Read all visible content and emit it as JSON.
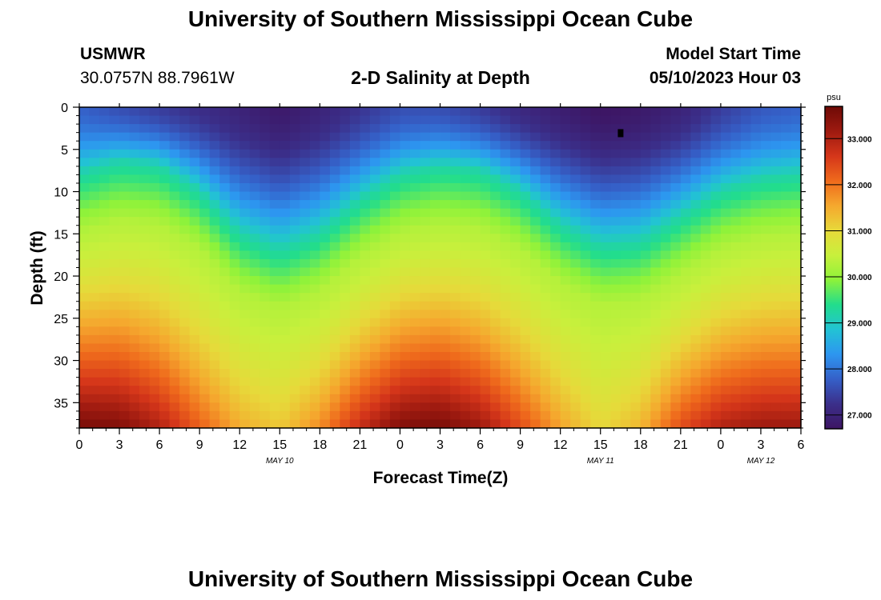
{
  "page_title": "University of Southern Mississippi Ocean Cube",
  "footer_title": "University of Southern Mississippi Ocean Cube",
  "station": {
    "name": "USMWR",
    "coords": "30.0757N  88.7961W"
  },
  "model_start": {
    "label": "Model Start Time",
    "value": "05/10/2023 Hour 03"
  },
  "colorbar_scale": [
    "#3d1563",
    "#3b2f8a",
    "#3560c8",
    "#2d96f0",
    "#22c3d4",
    "#22dd8c",
    "#8ef23a",
    "#c8f03c",
    "#e7d93a",
    "#f5a82e",
    "#ef6a1c",
    "#d5361a",
    "#9e1a10",
    "#6e0a06"
  ],
  "chart_data": {
    "type": "heatmap",
    "title": "2-D Salinity at Depth",
    "xlabel": "Forecast Time(Z)",
    "ylabel": "Depth (ft)",
    "x_ticks": [
      "0",
      "3",
      "6",
      "9",
      "12",
      "15",
      "18",
      "21",
      "0",
      "3",
      "6",
      "9",
      "12",
      "15",
      "18",
      "21",
      "0",
      "3",
      "6"
    ],
    "date_labels": [
      "MAY 10",
      "MAY 11",
      "MAY 12"
    ],
    "xlim_hours": [
      0,
      54
    ],
    "ylim": [
      0,
      38
    ],
    "y_ticks": [
      0,
      5,
      10,
      15,
      20,
      25,
      30,
      35
    ],
    "units": "psu",
    "colorbar_ticks": [
      "27.000",
      "28.000",
      "29.000",
      "30.000",
      "31.000",
      "32.000",
      "33.000"
    ],
    "color_range": [
      26.7,
      33.7
    ],
    "surface_low_salinity_psu": [
      {
        "hour": 0,
        "value": 27.8
      },
      {
        "hour": 3,
        "value": 27.6
      },
      {
        "hour": 6,
        "value": 27.4
      },
      {
        "hour": 9,
        "value": 27.2
      },
      {
        "hour": 12,
        "value": 27.0
      },
      {
        "hour": 15,
        "value": 26.8
      },
      {
        "hour": 18,
        "value": 27.0
      },
      {
        "hour": 21,
        "value": 27.3
      },
      {
        "hour": 24,
        "value": 27.6
      },
      {
        "hour": 27,
        "value": 27.6
      },
      {
        "hour": 30,
        "value": 27.4
      },
      {
        "hour": 33,
        "value": 27.1
      },
      {
        "hour": 36,
        "value": 26.9
      },
      {
        "hour": 39,
        "value": 26.7
      },
      {
        "hour": 42,
        "value": 26.8
      },
      {
        "hour": 45,
        "value": 27.0
      },
      {
        "hour": 48,
        "value": 27.4
      },
      {
        "hour": 51,
        "value": 27.7
      },
      {
        "hour": 54,
        "value": 27.8
      }
    ],
    "halocline_depth_ft": [
      {
        "hour": 0,
        "value": 8
      },
      {
        "hour": 3,
        "value": 6.5
      },
      {
        "hour": 6,
        "value": 7
      },
      {
        "hour": 9,
        "value": 10
      },
      {
        "hour": 12,
        "value": 15
      },
      {
        "hour": 15,
        "value": 17
      },
      {
        "hour": 18,
        "value": 15
      },
      {
        "hour": 21,
        "value": 11
      },
      {
        "hour": 24,
        "value": 8
      },
      {
        "hour": 27,
        "value": 7
      },
      {
        "hour": 30,
        "value": 7.5
      },
      {
        "hour": 33,
        "value": 10
      },
      {
        "hour": 36,
        "value": 14
      },
      {
        "hour": 39,
        "value": 16.5
      },
      {
        "hour": 42,
        "value": 16
      },
      {
        "hour": 45,
        "value": 13
      },
      {
        "hour": 48,
        "value": 10
      },
      {
        "hour": 51,
        "value": 8.5
      },
      {
        "hour": 54,
        "value": 8
      }
    ],
    "bottom_salinity_psu": [
      {
        "hour": 0,
        "value": 33.6
      },
      {
        "hour": 3,
        "value": 33.5
      },
      {
        "hour": 6,
        "value": 33.0
      },
      {
        "hour": 9,
        "value": 32.2
      },
      {
        "hour": 12,
        "value": 31.5
      },
      {
        "hour": 15,
        "value": 31.2
      },
      {
        "hour": 18,
        "value": 31.8
      },
      {
        "hour": 21,
        "value": 32.8
      },
      {
        "hour": 24,
        "value": 33.5
      },
      {
        "hour": 27,
        "value": 33.6
      },
      {
        "hour": 30,
        "value": 33.2
      },
      {
        "hour": 33,
        "value": 32.4
      },
      {
        "hour": 36,
        "value": 31.6
      },
      {
        "hour": 39,
        "value": 31.0
      },
      {
        "hour": 42,
        "value": 31.4
      },
      {
        "hour": 45,
        "value": 32.4
      },
      {
        "hour": 48,
        "value": 33.0
      },
      {
        "hour": 51,
        "value": 33.2
      },
      {
        "hour": 54,
        "value": 33.2
      }
    ]
  }
}
